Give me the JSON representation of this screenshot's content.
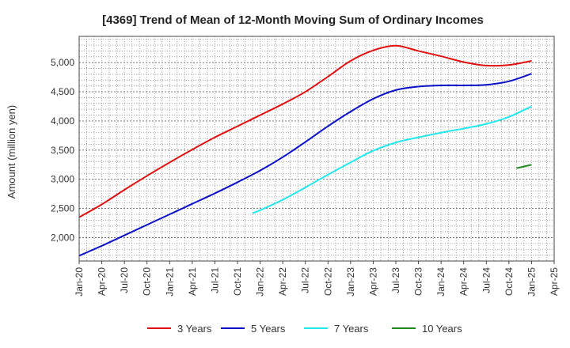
{
  "chart_data": {
    "type": "line",
    "title": "[4369]  Trend of Mean of 12-Month Moving Sum of Ordinary Incomes",
    "xlabel": "",
    "ylabel": "Amount (million yen)",
    "x_ticks": [
      "Jan-20",
      "Apr-20",
      "Jul-20",
      "Oct-20",
      "Jan-21",
      "Apr-21",
      "Jul-21",
      "Oct-21",
      "Jan-22",
      "Apr-22",
      "Jul-22",
      "Oct-22",
      "Jan-23",
      "Apr-23",
      "Jul-23",
      "Oct-23",
      "Jan-24",
      "Apr-24",
      "Jul-24",
      "Oct-24",
      "Jan-25",
      "Apr-25"
    ],
    "ylim": [
      1600,
      5450
    ],
    "y_ticks": [
      2000,
      2500,
      3000,
      3500,
      4000,
      4500,
      5000
    ],
    "y_tick_labels": [
      "2,000",
      "2,500",
      "3,000",
      "3,500",
      "4,000",
      "4,500",
      "5,000"
    ],
    "grid": true,
    "legend_position": "bottom",
    "series": [
      {
        "name": "3 Years",
        "color": "#e01010",
        "points": [
          [
            "Jan-20",
            2350
          ],
          [
            "Apr-20",
            2570
          ],
          [
            "Jul-20",
            2820
          ],
          [
            "Oct-20",
            3060
          ],
          [
            "Jan-21",
            3290
          ],
          [
            "Apr-21",
            3510
          ],
          [
            "Jul-21",
            3720
          ],
          [
            "Oct-21",
            3910
          ],
          [
            "Jan-22",
            4100
          ],
          [
            "Apr-22",
            4290
          ],
          [
            "Jul-22",
            4500
          ],
          [
            "Oct-22",
            4760
          ],
          [
            "Jan-23",
            5030
          ],
          [
            "Apr-23",
            5210
          ],
          [
            "Jul-23",
            5290
          ],
          [
            "Oct-23",
            5200
          ],
          [
            "Jan-24",
            5110
          ],
          [
            "Apr-24",
            5010
          ],
          [
            "Jul-24",
            4950
          ],
          [
            "Oct-24",
            4960
          ],
          [
            "Jan-25",
            5030
          ]
        ]
      },
      {
        "name": "5 Years",
        "color": "#0a10c8",
        "points": [
          [
            "Jan-20",
            1690
          ],
          [
            "Apr-20",
            1860
          ],
          [
            "Jul-20",
            2040
          ],
          [
            "Oct-20",
            2220
          ],
          [
            "Jan-21",
            2400
          ],
          [
            "Apr-21",
            2580
          ],
          [
            "Jul-21",
            2760
          ],
          [
            "Oct-21",
            2950
          ],
          [
            "Jan-22",
            3150
          ],
          [
            "Apr-22",
            3380
          ],
          [
            "Jul-22",
            3640
          ],
          [
            "Oct-22",
            3910
          ],
          [
            "Jan-23",
            4160
          ],
          [
            "Apr-23",
            4380
          ],
          [
            "Jul-23",
            4530
          ],
          [
            "Oct-23",
            4590
          ],
          [
            "Jan-24",
            4610
          ],
          [
            "Apr-24",
            4610
          ],
          [
            "Jul-24",
            4620
          ],
          [
            "Oct-24",
            4680
          ],
          [
            "Jan-25",
            4810
          ]
        ]
      },
      {
        "name": "7 Years",
        "color": "#22e8ee",
        "points": [
          [
            "Dec-21",
            2420
          ],
          [
            "Jan-22",
            2470
          ],
          [
            "Apr-22",
            2650
          ],
          [
            "Jul-22",
            2860
          ],
          [
            "Oct-22",
            3080
          ],
          [
            "Jan-23",
            3290
          ],
          [
            "Apr-23",
            3490
          ],
          [
            "Jul-23",
            3630
          ],
          [
            "Oct-23",
            3720
          ],
          [
            "Jan-24",
            3800
          ],
          [
            "Apr-24",
            3870
          ],
          [
            "Jul-24",
            3950
          ],
          [
            "Oct-24",
            4070
          ],
          [
            "Jan-25",
            4250
          ]
        ]
      },
      {
        "name": "10 Years",
        "color": "#208a20",
        "points": [
          [
            "Nov-24",
            3190
          ],
          [
            "Jan-25",
            3250
          ]
        ]
      }
    ]
  }
}
